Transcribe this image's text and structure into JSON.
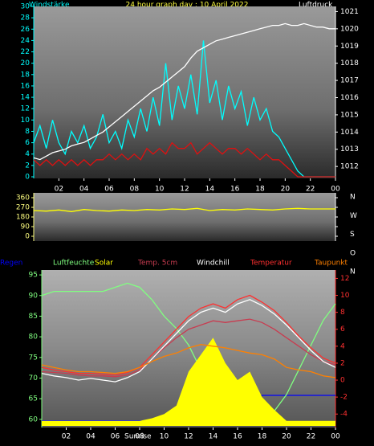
{
  "chart_data": [
    {
      "type": "line",
      "title": "24 hour graph day : 10 April 2022",
      "ylabel": "Windstärke",
      "y2label": "Luftdruck",
      "x": [
        0,
        0.5,
        1,
        1.5,
        2,
        2.5,
        3,
        3.5,
        4,
        4.5,
        5,
        5.5,
        6,
        6.5,
        7,
        7.5,
        8,
        8.5,
        9,
        9.5,
        10,
        10.5,
        11,
        11.5,
        12,
        12.5,
        13,
        13.5,
        14,
        14.5,
        15,
        15.5,
        16,
        16.5,
        17,
        17.5,
        18,
        18.5,
        19,
        19.5,
        20,
        20.5,
        21,
        21.5,
        22,
        22.5,
        23,
        23.5,
        24
      ],
      "xlim": [
        0,
        24
      ],
      "xticks": [
        {
          "value": 2,
          "label": "02"
        },
        {
          "value": 4,
          "label": "04"
        },
        {
          "value": 6,
          "label": "06"
        },
        {
          "value": 8,
          "label": "08"
        },
        10,
        12,
        14,
        16,
        18,
        20,
        22,
        {
          "value": 24,
          "label": "00"
        }
      ],
      "ylim": [
        0,
        30
      ],
      "yticks": [
        0,
        2,
        4,
        6,
        8,
        10,
        12,
        14,
        16,
        18,
        20,
        22,
        24,
        26,
        28,
        30
      ],
      "y2lim": [
        1011.4,
        1021.3
      ],
      "y2ticks": [
        1012,
        1013,
        1014,
        1015,
        1016,
        1017,
        1018,
        1019,
        1020,
        1021
      ],
      "series": [
        {
          "color": "#00ffff",
          "values": [
            6,
            9,
            5,
            10,
            6,
            4,
            8,
            6,
            9,
            5,
            7,
            11,
            6,
            8,
            5,
            10,
            7,
            12,
            8,
            14,
            9,
            20,
            10,
            16,
            12,
            18,
            11,
            24,
            13,
            17,
            10,
            16,
            12,
            15,
            9,
            14,
            10,
            12,
            8,
            7,
            5,
            3,
            1,
            0,
            0,
            0,
            0,
            0,
            0
          ]
        },
        {
          "color": "#e01010",
          "values": [
            3,
            2,
            3,
            2,
            3,
            2,
            3,
            2,
            3,
            2,
            3,
            3,
            4,
            3,
            4,
            3,
            4,
            3,
            5,
            4,
            5,
            4,
            6,
            5,
            5,
            6,
            4,
            5,
            6,
            5,
            4,
            5,
            5,
            4,
            5,
            4,
            3,
            4,
            3,
            3,
            2,
            1,
            0,
            0,
            0,
            0,
            0,
            0,
            0
          ]
        },
        {
          "color": "#ffffff",
          "axis": "y2",
          "values": [
            1012.5,
            1012.4,
            1012.6,
            1012.8,
            1012.9,
            1013.0,
            1013.2,
            1013.3,
            1013.4,
            1013.6,
            1013.8,
            1014.0,
            1014.3,
            1014.6,
            1014.9,
            1015.2,
            1015.5,
            1015.8,
            1016.1,
            1016.4,
            1016.6,
            1016.9,
            1017.2,
            1017.5,
            1017.8,
            1018.3,
            1018.7,
            1018.9,
            1019.1,
            1019.3,
            1019.4,
            1019.5,
            1019.6,
            1019.7,
            1019.8,
            1019.9,
            1020.0,
            1020.1,
            1020.2,
            1020.2,
            1020.3,
            1020.2,
            1020.2,
            1020.3,
            1020.2,
            1020.1,
            1020.1,
            1020.0,
            1020.0
          ]
        }
      ]
    },
    {
      "type": "line",
      "x": [
        0,
        1,
        2,
        3,
        4,
        5,
        6,
        7,
        8,
        9,
        10,
        11,
        12,
        13,
        14,
        15,
        16,
        17,
        18,
        19,
        20,
        21,
        22,
        23,
        24
      ],
      "xlim": [
        0,
        24
      ],
      "ylim": [
        0,
        360
      ],
      "yticks": [
        0,
        90,
        180,
        270,
        360
      ],
      "y2lim": [
        0,
        360
      ],
      "y2ticks": [
        {
          "value": 360,
          "label": "N"
        },
        {
          "value": 270,
          "label": "W"
        },
        {
          "value": 180,
          "label": "S"
        },
        {
          "value": 90,
          "label": "O"
        },
        {
          "value": 0,
          "label": "N"
        }
      ],
      "series": [
        {
          "color": "#ffff00",
          "values": [
            240,
            235,
            245,
            230,
            250,
            240,
            235,
            245,
            240,
            250,
            245,
            255,
            250,
            260,
            240,
            250,
            245,
            255,
            250,
            245,
            255,
            260,
            255,
            255,
            255
          ]
        }
      ]
    },
    {
      "type": "line",
      "annotation": "Sunrise",
      "x": [
        0,
        1,
        2,
        3,
        4,
        5,
        6,
        7,
        8,
        9,
        10,
        11,
        12,
        13,
        14,
        15,
        16,
        17,
        18,
        19,
        20,
        21,
        22,
        23,
        24
      ],
      "xlim": [
        0,
        24
      ],
      "xticks": [
        {
          "value": 2,
          "label": "02"
        },
        {
          "value": 4,
          "label": "04"
        },
        {
          "value": 6,
          "label": "06"
        },
        {
          "value": 8,
          "label": "08"
        },
        10,
        12,
        14,
        16,
        18,
        20,
        22,
        {
          "value": 24,
          "label": "00"
        }
      ],
      "ylim": [
        58.4,
        95.8
      ],
      "yticks": [
        60,
        65,
        70,
        75,
        80,
        85,
        90,
        95
      ],
      "y2lim": [
        -5.4,
        12.8
      ],
      "y2ticks": [
        -4,
        -2,
        0,
        2,
        4,
        6,
        8,
        10,
        12
      ],
      "series": [
        {
          "name": "Regen",
          "color": "#0000ff",
          "axis": "y2",
          "values": [
            -4.8,
            -4.8,
            -4.8,
            -4.8,
            -4.8,
            -4.8,
            -4.8,
            -4.8,
            -4.8,
            -4.8,
            -4.8,
            -4.8,
            -4.8,
            -3.8,
            -3.8,
            -3.8,
            -3.6,
            -3.6,
            -1.8,
            -1.8,
            -1.8,
            -1.8,
            -1.8,
            -1.8,
            -1.8
          ]
        },
        {
          "name": "Luftfeuchte",
          "color": "#80ff80",
          "values": [
            90,
            91,
            91,
            91,
            91,
            91,
            92,
            93,
            92,
            89,
            85,
            82,
            78,
            72,
            68,
            65,
            63,
            62,
            62,
            62,
            66,
            72,
            78,
            84,
            88
          ]
        },
        {
          "name": "Solar",
          "color": "#ffff00",
          "axis": "y2",
          "area": true,
          "values": [
            -4.8,
            -4.8,
            -4.8,
            -4.8,
            -4.8,
            -4.8,
            -4.8,
            -4.8,
            -4.8,
            -4.5,
            -4.0,
            -3.0,
            1.0,
            3.0,
            5.0,
            2.0,
            0.0,
            1.0,
            -2.0,
            -3.5,
            -4.8,
            -4.8,
            -4.8,
            -4.8,
            -4.8
          ]
        },
        {
          "name": "Temp. 5cm",
          "color": "#c83c50",
          "axis": "y2",
          "values": [
            1.0,
            0.9,
            0.8,
            0.6,
            0.5,
            0.5,
            0.4,
            0.6,
            1.2,
            2.5,
            3.8,
            5.0,
            6.0,
            6.5,
            7.0,
            6.8,
            7.0,
            7.2,
            6.8,
            6.0,
            5.0,
            4.0,
            3.0,
            2.2,
            1.8
          ]
        },
        {
          "name": "Windchill",
          "color": "#ffffff",
          "axis": "y2",
          "values": [
            0.8,
            0.5,
            0.3,
            0.0,
            0.2,
            0.0,
            -0.2,
            0.3,
            1.0,
            2.5,
            4.0,
            5.5,
            7.0,
            8.0,
            8.5,
            8.0,
            9.0,
            9.5,
            8.8,
            7.8,
            6.5,
            5.0,
            3.5,
            2.2,
            1.5
          ]
        },
        {
          "name": "Temperatur",
          "color": "#ff3030",
          "axis": "y2",
          "values": [
            1.5,
            1.2,
            1.0,
            0.8,
            0.8,
            0.7,
            0.6,
            0.9,
            1.5,
            3.0,
            4.5,
            6.0,
            7.5,
            8.5,
            9.0,
            8.5,
            9.5,
            10.0,
            9.2,
            8.2,
            6.8,
            5.2,
            3.8,
            2.6,
            2.0
          ]
        },
        {
          "name": "Taupunkt",
          "color": "#ff8000",
          "axis": "y2",
          "values": [
            1.8,
            1.5,
            1.2,
            1.0,
            1.0,
            0.9,
            0.8,
            1.0,
            1.5,
            2.2,
            2.8,
            3.2,
            3.8,
            4.2,
            4.0,
            3.8,
            3.5,
            3.2,
            3.0,
            2.5,
            1.5,
            1.2,
            1.0,
            0.5,
            0.3
          ]
        }
      ]
    }
  ]
}
